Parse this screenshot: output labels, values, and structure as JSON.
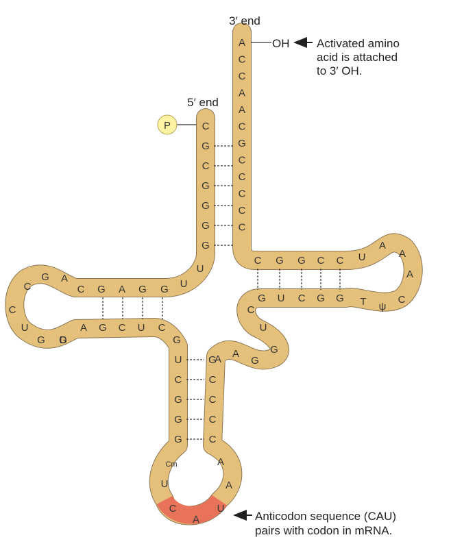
{
  "labels": {
    "three_prime_end": "3′ end",
    "five_prime_end": "5′ end",
    "phosphate": "P",
    "oh": "OH",
    "amino_note_1": "Activated amino",
    "amino_note_2": "acid is attached",
    "amino_note_3": "to 3′ OH.",
    "anticodon_note_1": "Anticodon sequence (CAU)",
    "anticodon_note_2": "pairs with codon in mRNA."
  },
  "acceptor_stem": {
    "three_prime_strand": [
      "A",
      "C",
      "C",
      "A",
      "A",
      "C",
      "G",
      "C",
      "C",
      "C",
      "C",
      "C"
    ],
    "five_prime_strand": [
      "C",
      "G",
      "C",
      "G",
      "G",
      "G",
      "G"
    ]
  },
  "d_arm": {
    "strand_out": [
      "U",
      "G",
      "G",
      "A",
      "G",
      "C",
      "A"
    ],
    "loop": [
      "G",
      "C",
      "C",
      "U",
      "G",
      "G",
      "D"
    ],
    "strand_in": [
      "A",
      "G",
      "C",
      "U",
      "C",
      "G"
    ]
  },
  "anticodon_arm": {
    "strand_down": [
      "U",
      "C",
      "G",
      "G",
      "G"
    ],
    "loop": [
      "Cm",
      "U",
      "C",
      "A",
      "U",
      "A",
      "A"
    ],
    "strand_up": [
      "C",
      "C",
      "C",
      "C",
      "G"
    ],
    "variable_loop": [
      "A",
      "A",
      "G",
      "G",
      "U",
      "C"
    ]
  },
  "t_arm": {
    "strand_out": [
      "C",
      "G",
      "G",
      "C",
      "C"
    ],
    "loop": [
      "U",
      "A",
      "A",
      "A",
      "C",
      "ψ",
      "T"
    ],
    "strand_in": [
      "G",
      "G",
      "C",
      "U",
      "G"
    ]
  },
  "colors": {
    "backbone": "#e5c07b",
    "outline": "#8a7654",
    "anticodon": "#e8735a",
    "phosphate": "#fdf3a2",
    "pair_line": "#333333"
  }
}
